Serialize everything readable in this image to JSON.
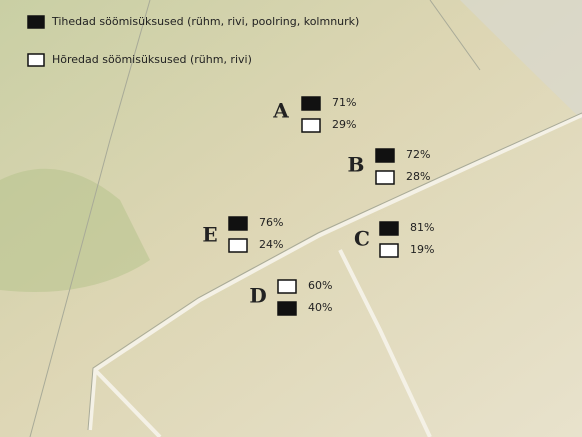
{
  "legend": [
    {
      "label": "Tihedad söömisüksused (rühm, rivi, poolring, kolmnurk)"
    },
    {
      "label": "Hõredad söömisüksused (rühm, rivi)"
    }
  ],
  "sites": [
    {
      "letter": "A",
      "dense": "71%",
      "sparse": "29%"
    },
    {
      "letter": "B",
      "dense": "72%",
      "sparse": "28%"
    },
    {
      "letter": "E",
      "dense": "76%",
      "sparse": "24%"
    },
    {
      "letter": "C",
      "dense": "81%",
      "sparse": "19%"
    },
    {
      "letter": "D",
      "dense": "40%",
      "sparse": "60%"
    }
  ]
}
